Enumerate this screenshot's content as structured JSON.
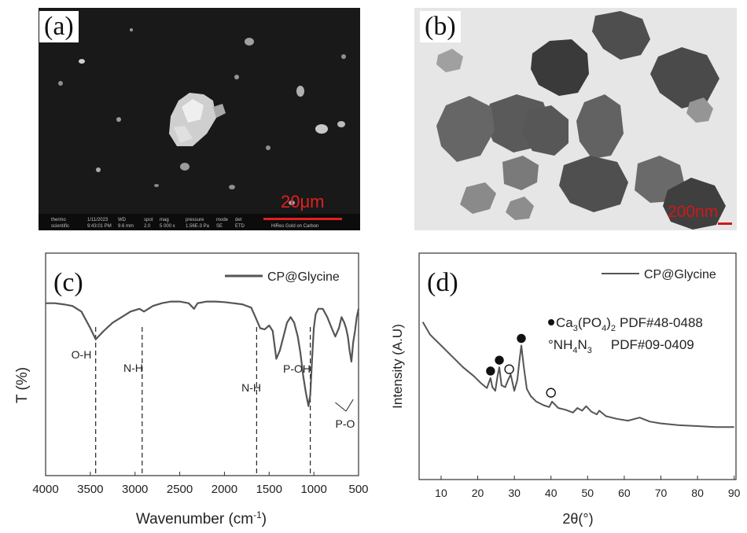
{
  "figure": {
    "panel_a": {
      "label": "(a)",
      "scale_bar": "20μm",
      "databar": {
        "brand_1": "thermo",
        "brand_2": "scientific",
        "date": "1/11/2023",
        "time": "9:43:01 PM",
        "wd_label": "WD",
        "wd_value": "9.6 mm",
        "spot_label": "spot",
        "spot_value": "2.0",
        "mag_label": "mag",
        "mag_value": "5 000 x",
        "pressure_label": "pressure",
        "pressure_value": "1.56E-3 Pa",
        "mode_label": "mode",
        "mode_value": "SE",
        "det_label": "det",
        "det_value": "ETD",
        "hfw_label": "HiRes Gold on Carbon"
      }
    },
    "panel_b": {
      "label": "(b)",
      "scale_bar": "200nm"
    },
    "panel_c": {
      "label": "(c)",
      "legend": "CP@Glycine",
      "annotations": [
        "O-H",
        "N-H",
        "N-H",
        "P-OH",
        "P-O"
      ],
      "xlabel_main": "Wavenumber (cm",
      "xlabel_sup": "-1",
      "xlabel_end": ")",
      "ylabel": "T (%)",
      "x_ticks": [
        "4000",
        "3500",
        "3000",
        "2500",
        "2000",
        "1500",
        "1000",
        "500"
      ]
    },
    "panel_d": {
      "label": "(d)",
      "legend": "CP@Glycine",
      "legend_ca": "Ca",
      "legend_ca_sub1": "3",
      "legend_ca_po": "(PO",
      "legend_ca_sub2": "4",
      "legend_ca_end": ")",
      "legend_ca_sub3": "2",
      "legend_ca_pdf": "PDF#48-0488",
      "legend_nh_pre": "°NH",
      "legend_nh_sub1": "4",
      "legend_nh_n": "N",
      "legend_nh_sub2": "3",
      "legend_nh_pdf": "PDF#09-0409",
      "xlabel": "2θ(°)",
      "ylabel": "Intensity (A.U)",
      "x_ticks": [
        "10",
        "20",
        "30",
        "40",
        "50",
        "60",
        "70",
        "80",
        "90"
      ]
    }
  },
  "chart_data": [
    {
      "type": "line",
      "panel": "(c)",
      "xlabel": "Wavenumber (cm-1)",
      "ylabel": "T (%)",
      "xlim": [
        4000,
        500
      ],
      "x_reversed": true,
      "y_ticks_shown": false,
      "legend": "top-right",
      "series": [
        {
          "name": "CP@Glycine",
          "color": "#555555",
          "x": [
            4000,
            3900,
            3800,
            3700,
            3600,
            3500,
            3440,
            3350,
            3250,
            3150,
            3050,
            2950,
            2900,
            2800,
            2700,
            2600,
            2500,
            2400,
            2340,
            2300,
            2200,
            2100,
            2000,
            1900,
            1800,
            1700,
            1640,
            1600,
            1550,
            1500,
            1460,
            1420,
            1380,
            1340,
            1300,
            1260,
            1220,
            1180,
            1150,
            1120,
            1090,
            1060,
            1040,
            1020,
            1000,
            980,
            950,
            900,
            850,
            800,
            760,
            720,
            690,
            660,
            640,
            620,
            600,
            580,
            560,
            540,
            520,
            500
          ],
          "y": [
            91,
            91,
            90.8,
            90.5,
            89.5,
            86.5,
            84.5,
            86,
            87.5,
            88.5,
            89.5,
            90,
            89.5,
            90.5,
            91,
            91.3,
            91.3,
            91,
            90,
            91,
            91.3,
            91.3,
            91.2,
            91,
            90.8,
            90.2,
            88,
            86.5,
            86.3,
            87,
            86,
            81,
            82.5,
            85,
            87.5,
            88.5,
            87.5,
            85,
            82,
            78,
            75,
            72.5,
            74.5,
            81,
            86.5,
            89,
            90,
            90,
            88.5,
            86.5,
            85,
            86.5,
            88.5,
            87.5,
            86.5,
            85,
            82.5,
            80.5,
            84,
            86,
            88.5,
            90
          ]
        }
      ],
      "vertical_markers": [
        3440,
        2920,
        1640,
        1040
      ],
      "annotations": [
        {
          "text": "O-H",
          "x": 3600
        },
        {
          "text": "N-H",
          "x": 3020
        },
        {
          "text": "N-H",
          "x": 1700
        },
        {
          "text": "P-OH",
          "x": 1190
        },
        {
          "text": "P-O",
          "x": 650
        }
      ]
    },
    {
      "type": "line",
      "panel": "(d)",
      "xlabel": "2θ(°)",
      "ylabel": "Intensity (A.U)",
      "xlim": [
        5,
        90
      ],
      "y_ticks_shown": false,
      "legend": "top-right",
      "series": [
        {
          "name": "CP@Glycine",
          "color": "#555555",
          "x": [
            5,
            7,
            10,
            13,
            16,
            19,
            21,
            22.5,
            23.5,
            24,
            24.8,
            25.4,
            25.9,
            26.5,
            27.5,
            28.3,
            29,
            30,
            30.8,
            31.4,
            31.9,
            32.6,
            33.4,
            34.5,
            36,
            38,
            39.5,
            40.3,
            42,
            44,
            46,
            47.2,
            48.5,
            49.6,
            51,
            52.5,
            53.2,
            55,
            58,
            61,
            64.2,
            67,
            70,
            75,
            80,
            85,
            90
          ],
          "y": [
            87,
            80,
            74,
            68,
            62,
            57,
            53,
            50.5,
            56,
            51,
            49,
            57,
            62,
            52,
            51,
            55,
            58,
            49,
            55,
            66,
            74,
            62,
            50,
            46,
            43,
            41,
            40,
            43,
            39.5,
            38.5,
            37,
            39.5,
            38,
            40.5,
            37.5,
            36,
            38,
            35,
            33.5,
            32.5,
            34.2,
            32,
            31,
            30,
            29.5,
            29,
            29
          ]
        }
      ],
      "peak_markers": [
        {
          "x": 23.5,
          "y": 56,
          "kind": "filled",
          "phase": "Ca3(PO4)2"
        },
        {
          "x": 25.9,
          "y": 62,
          "kind": "filled",
          "phase": "Ca3(PO4)2"
        },
        {
          "x": 28.6,
          "y": 57,
          "kind": "open",
          "phase": "NH4N3"
        },
        {
          "x": 31.9,
          "y": 74,
          "kind": "filled",
          "phase": "Ca3(PO4)2"
        },
        {
          "x": 40.0,
          "y": 44,
          "kind": "open",
          "phase": "NH4N3"
        }
      ]
    }
  ]
}
